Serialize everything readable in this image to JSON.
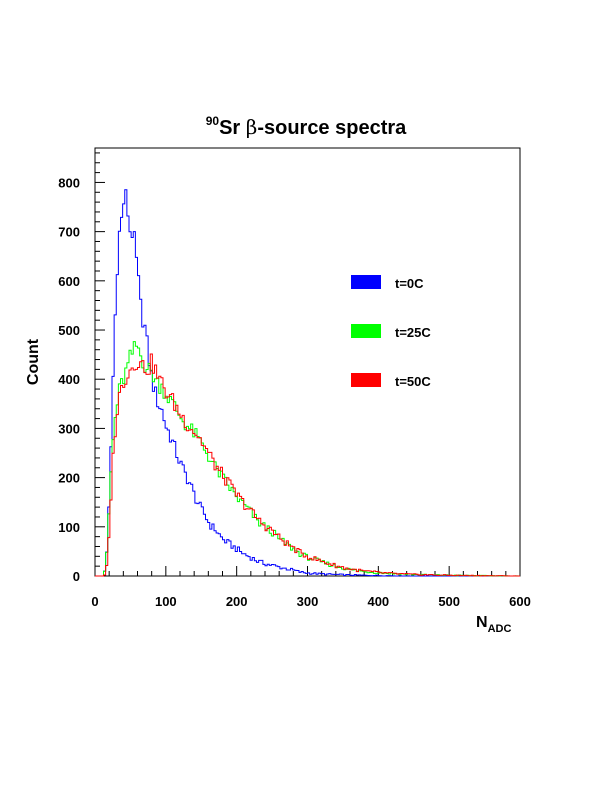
{
  "chart_data": {
    "type": "line",
    "title_superscript": "90",
    "title_element": "Sr",
    "title_greek": "β",
    "title_rest": "-source spectra",
    "xlabel_main": "N",
    "xlabel_sub": "ADC",
    "ylabel": "Count",
    "xlim": [
      0,
      600
    ],
    "ylim": [
      0,
      870
    ],
    "x_ticks": [
      "0",
      "100",
      "200",
      "300",
      "400",
      "500",
      "600"
    ],
    "y_ticks": [
      "0",
      "100",
      "200",
      "300",
      "400",
      "500",
      "600",
      "700",
      "800"
    ],
    "legend_position": "right",
    "bin_width": 3,
    "series": [
      {
        "name": "t=0C",
        "color": "#0000ff",
        "points": [
          [
            0,
            0
          ],
          [
            12,
            0
          ],
          [
            16,
            30
          ],
          [
            20,
            150
          ],
          [
            24,
            330
          ],
          [
            27,
            480
          ],
          [
            30,
            580
          ],
          [
            33,
            680
          ],
          [
            36,
            715
          ],
          [
            39,
            735
          ],
          [
            42,
            785
          ],
          [
            45,
            760
          ],
          [
            48,
            715
          ],
          [
            51,
            690
          ],
          [
            54,
            705
          ],
          [
            57,
            660
          ],
          [
            60,
            620
          ],
          [
            63,
            575
          ],
          [
            66,
            525
          ],
          [
            69,
            520
          ],
          [
            72,
            490
          ],
          [
            75,
            455
          ],
          [
            78,
            420
          ],
          [
            81,
            395
          ],
          [
            84,
            380
          ],
          [
            87,
            360
          ],
          [
            90,
            350
          ],
          [
            95,
            335
          ],
          [
            100,
            305
          ],
          [
            105,
            290
          ],
          [
            110,
            270
          ],
          [
            115,
            250
          ],
          [
            120,
            230
          ],
          [
            125,
            215
          ],
          [
            130,
            200
          ],
          [
            135,
            185
          ],
          [
            140,
            165
          ],
          [
            145,
            150
          ],
          [
            150,
            135
          ],
          [
            155,
            125
          ],
          [
            160,
            110
          ],
          [
            165,
            100
          ],
          [
            170,
            95
          ],
          [
            175,
            85
          ],
          [
            180,
            75
          ],
          [
            190,
            65
          ],
          [
            200,
            55
          ],
          [
            210,
            45
          ],
          [
            220,
            38
          ],
          [
            230,
            30
          ],
          [
            240,
            25
          ],
          [
            250,
            22
          ],
          [
            260,
            18
          ],
          [
            270,
            15
          ],
          [
            280,
            12
          ],
          [
            290,
            8
          ],
          [
            300,
            6
          ],
          [
            320,
            4
          ],
          [
            340,
            3
          ],
          [
            360,
            2
          ],
          [
            400,
            1
          ],
          [
            450,
            0
          ],
          [
            600,
            0
          ]
        ]
      },
      {
        "name": "t=25C",
        "color": "#00ff00",
        "points": [
          [
            0,
            0
          ],
          [
            12,
            0
          ],
          [
            15,
            15
          ],
          [
            18,
            80
          ],
          [
            21,
            170
          ],
          [
            24,
            250
          ],
          [
            27,
            300
          ],
          [
            30,
            340
          ],
          [
            35,
            380
          ],
          [
            40,
            400
          ],
          [
            45,
            420
          ],
          [
            50,
            445
          ],
          [
            55,
            460
          ],
          [
            60,
            470
          ],
          [
            65,
            445
          ],
          [
            70,
            430
          ],
          [
            75,
            420
          ],
          [
            80,
            415
          ],
          [
            85,
            400
          ],
          [
            90,
            390
          ],
          [
            95,
            385
          ],
          [
            100,
            370
          ],
          [
            110,
            350
          ],
          [
            120,
            325
          ],
          [
            130,
            305
          ],
          [
            140,
            290
          ],
          [
            150,
            270
          ],
          [
            160,
            245
          ],
          [
            170,
            220
          ],
          [
            180,
            200
          ],
          [
            190,
            180
          ],
          [
            200,
            160
          ],
          [
            210,
            145
          ],
          [
            220,
            130
          ],
          [
            230,
            110
          ],
          [
            240,
            100
          ],
          [
            250,
            90
          ],
          [
            260,
            75
          ],
          [
            270,
            65
          ],
          [
            280,
            55
          ],
          [
            290,
            45
          ],
          [
            300,
            38
          ],
          [
            320,
            28
          ],
          [
            340,
            20
          ],
          [
            360,
            13
          ],
          [
            380,
            9
          ],
          [
            400,
            7
          ],
          [
            420,
            5
          ],
          [
            450,
            3
          ],
          [
            480,
            2
          ],
          [
            520,
            1
          ],
          [
            600,
            0
          ]
        ]
      },
      {
        "name": "t=50C",
        "color": "#ff0000",
        "points": [
          [
            0,
            0
          ],
          [
            13,
            0
          ],
          [
            16,
            10
          ],
          [
            19,
            60
          ],
          [
            22,
            150
          ],
          [
            25,
            230
          ],
          [
            28,
            290
          ],
          [
            31,
            330
          ],
          [
            35,
            370
          ],
          [
            40,
            395
          ],
          [
            45,
            410
          ],
          [
            50,
            420
          ],
          [
            55,
            430
          ],
          [
            60,
            440
          ],
          [
            65,
            430
          ],
          [
            70,
            425
          ],
          [
            75,
            420
          ],
          [
            80,
            435
          ],
          [
            85,
            420
          ],
          [
            90,
            400
          ],
          [
            95,
            390
          ],
          [
            100,
            375
          ],
          [
            110,
            355
          ],
          [
            120,
            330
          ],
          [
            130,
            310
          ],
          [
            140,
            295
          ],
          [
            150,
            275
          ],
          [
            160,
            250
          ],
          [
            170,
            225
          ],
          [
            180,
            205
          ],
          [
            190,
            185
          ],
          [
            200,
            165
          ],
          [
            210,
            148
          ],
          [
            220,
            132
          ],
          [
            230,
            115
          ],
          [
            240,
            102
          ],
          [
            250,
            92
          ],
          [
            260,
            78
          ],
          [
            270,
            67
          ],
          [
            280,
            57
          ],
          [
            290,
            47
          ],
          [
            300,
            40
          ],
          [
            320,
            30
          ],
          [
            340,
            21
          ],
          [
            360,
            14
          ],
          [
            380,
            10
          ],
          [
            400,
            7
          ],
          [
            420,
            5
          ],
          [
            450,
            3
          ],
          [
            480,
            2
          ],
          [
            520,
            1
          ],
          [
            600,
            0
          ]
        ]
      }
    ]
  },
  "legend": [
    {
      "label": "t=0C",
      "color": "#0000ff"
    },
    {
      "label": "t=25C",
      "color": "#00ff00"
    },
    {
      "label": "t=50C",
      "color": "#ff0000"
    }
  ]
}
